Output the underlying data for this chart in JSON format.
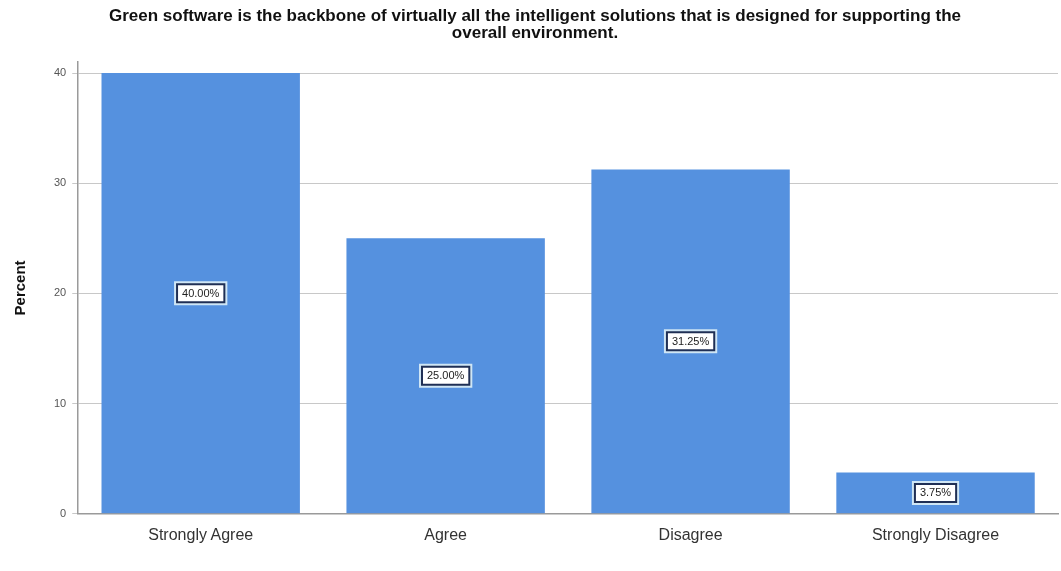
{
  "chart_data": {
    "type": "bar",
    "title": "Green software is the backbone of virtually all the intelligent solutions that is designed for supporting the overall environment.",
    "ylabel": "Percent",
    "categories": [
      "Strongly Agree",
      "Agree",
      "Disagree",
      "Strongly Disagree"
    ],
    "values": [
      40,
      25,
      31.25,
      3.75
    ],
    "color": "#5591df",
    "value_labels": [
      "40.00%",
      "25.00%",
      "31.25%",
      "3.75%"
    ],
    "ylim": [
      0,
      41
    ],
    "yticks": [
      0,
      10,
      20,
      30,
      40
    ],
    "grid": "y"
  }
}
